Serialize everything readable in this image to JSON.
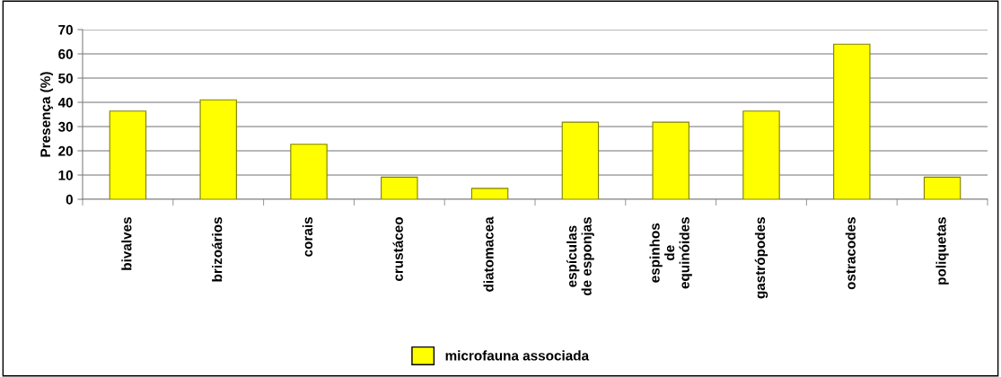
{
  "chart_data": {
    "type": "bar",
    "ylabel": "Presença (%)",
    "categories": [
      "bivalves",
      "brizoários",
      "corais",
      "crustáceo",
      "diatomacea",
      "espículas\nde esponjas",
      "espinhos\nde\nequinóides",
      "gastrópodes",
      "ostracodes",
      "poliquetas"
    ],
    "series": [
      {
        "name": "microfauna associada",
        "color": "#ffff00",
        "values": [
          36.4,
          41,
          22.7,
          9.1,
          4.5,
          31.8,
          31.8,
          36.4,
          64,
          9.1
        ]
      }
    ],
    "ylim": [
      0,
      70
    ],
    "yticks": [
      0,
      10,
      20,
      30,
      40,
      50,
      60,
      70
    ],
    "grid": "y",
    "legend": "bottom"
  }
}
